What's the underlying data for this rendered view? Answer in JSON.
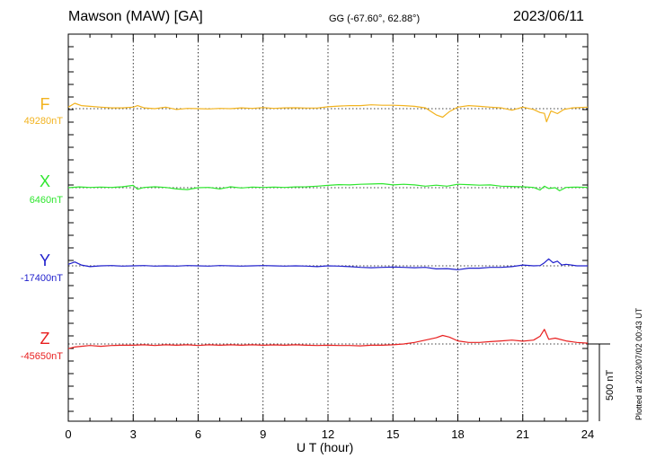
{
  "header": {
    "station": "Mawson (MAW)  [GA]",
    "coords": "GG (-67.60°,  62.88°)",
    "date": "2023/06/11"
  },
  "footer": {
    "plotted": "Plotted at 2023/07/02 00:43 UT",
    "scale_label": "500 nT"
  },
  "chart_data": {
    "type": "line",
    "title": "Mawson (MAW)  [GA]",
    "xlabel": "U T (hour)",
    "ylabel": "",
    "xlim": [
      0,
      24
    ],
    "xticks": [
      0,
      3,
      6,
      9,
      12,
      15,
      18,
      21,
      24
    ],
    "x_minor_step": 1,
    "scale_bar_nT": 500,
    "grid": "dotted vertical lines every 3 hours; dotted baseline per component",
    "series": [
      {
        "name": "F",
        "baseline_label": "49280nT",
        "baseline": 49280,
        "color": "#f2b31f",
        "points": [
          [
            0,
            49290
          ],
          [
            0.3,
            49315
          ],
          [
            0.6,
            49300
          ],
          [
            1,
            49295
          ],
          [
            1.5,
            49290
          ],
          [
            2,
            49285
          ],
          [
            2.5,
            49285
          ],
          [
            3,
            49290
          ],
          [
            3.2,
            49300
          ],
          [
            3.5,
            49285
          ],
          [
            4,
            49280
          ],
          [
            4.5,
            49290
          ],
          [
            5,
            49275
          ],
          [
            5.5,
            49282
          ],
          [
            6,
            49280
          ],
          [
            6.5,
            49278
          ],
          [
            7,
            49282
          ],
          [
            7.5,
            49280
          ],
          [
            8,
            49285
          ],
          [
            8.5,
            49282
          ],
          [
            9,
            49287
          ],
          [
            9.5,
            49282
          ],
          [
            10,
            49285
          ],
          [
            10.5,
            49286
          ],
          [
            11,
            49284
          ],
          [
            11.5,
            49284
          ],
          [
            12,
            49292
          ],
          [
            12.5,
            49297
          ],
          [
            13,
            49300
          ],
          [
            13.5,
            49300
          ],
          [
            14,
            49305
          ],
          [
            14.5,
            49302
          ],
          [
            15,
            49302
          ],
          [
            15.5,
            49300
          ],
          [
            16,
            49295
          ],
          [
            16.5,
            49285
          ],
          [
            17,
            49240
          ],
          [
            17.3,
            49225
          ],
          [
            17.6,
            49260
          ],
          [
            18,
            49290
          ],
          [
            18.5,
            49300
          ],
          [
            19,
            49295
          ],
          [
            19.5,
            49290
          ],
          [
            20,
            49285
          ],
          [
            20.5,
            49270
          ],
          [
            21,
            49290
          ],
          [
            21.5,
            49275
          ],
          [
            21.8,
            49255
          ],
          [
            22,
            49250
          ],
          [
            22.1,
            49195
          ],
          [
            22.3,
            49265
          ],
          [
            22.6,
            49248
          ],
          [
            22.9,
            49275
          ],
          [
            23.3,
            49285
          ],
          [
            24,
            49290
          ]
        ]
      },
      {
        "name": "X",
        "baseline_label": "6460nT",
        "baseline": 6460,
        "color": "#2ee62e",
        "points": [
          [
            0,
            6460
          ],
          [
            0.5,
            6465
          ],
          [
            1,
            6462
          ],
          [
            1.5,
            6464
          ],
          [
            2,
            6462
          ],
          [
            2.5,
            6466
          ],
          [
            3,
            6475
          ],
          [
            3.2,
            6450
          ],
          [
            3.5,
            6462
          ],
          [
            4,
            6466
          ],
          [
            4.5,
            6462
          ],
          [
            5,
            6452
          ],
          [
            5.5,
            6448
          ],
          [
            6,
            6460
          ],
          [
            6.5,
            6462
          ],
          [
            7,
            6452
          ],
          [
            7.5,
            6466
          ],
          [
            8,
            6458
          ],
          [
            8.5,
            6464
          ],
          [
            9,
            6462
          ],
          [
            9.5,
            6464
          ],
          [
            10,
            6462
          ],
          [
            10.5,
            6465
          ],
          [
            11,
            6466
          ],
          [
            11.5,
            6470
          ],
          [
            12,
            6475
          ],
          [
            12.5,
            6480
          ],
          [
            13,
            6478
          ],
          [
            13.5,
            6482
          ],
          [
            14,
            6484
          ],
          [
            14.5,
            6486
          ],
          [
            15,
            6478
          ],
          [
            15.5,
            6482
          ],
          [
            16,
            6478
          ],
          [
            16.5,
            6470
          ],
          [
            17,
            6476
          ],
          [
            17.5,
            6470
          ],
          [
            18,
            6482
          ],
          [
            18.5,
            6480
          ],
          [
            19,
            6476
          ],
          [
            19.5,
            6478
          ],
          [
            20,
            6470
          ],
          [
            20.5,
            6468
          ],
          [
            21,
            6466
          ],
          [
            21.5,
            6462
          ],
          [
            21.8,
            6445
          ],
          [
            22,
            6470
          ],
          [
            22.2,
            6455
          ],
          [
            22.5,
            6460
          ],
          [
            22.7,
            6440
          ],
          [
            23,
            6462
          ],
          [
            23.5,
            6464
          ],
          [
            24,
            6462
          ]
        ]
      },
      {
        "name": "Y",
        "baseline_label": "-17400nT",
        "baseline": -17400,
        "color": "#1f1fcc",
        "points": [
          [
            0,
            -17390
          ],
          [
            0.3,
            -17375
          ],
          [
            0.6,
            -17395
          ],
          [
            1,
            -17405
          ],
          [
            1.5,
            -17400
          ],
          [
            2,
            -17398
          ],
          [
            2.5,
            -17402
          ],
          [
            3,
            -17400
          ],
          [
            3.5,
            -17398
          ],
          [
            4,
            -17402
          ],
          [
            4.5,
            -17400
          ],
          [
            5,
            -17402
          ],
          [
            5.5,
            -17398
          ],
          [
            6,
            -17400
          ],
          [
            6.5,
            -17402
          ],
          [
            7,
            -17398
          ],
          [
            7.5,
            -17400
          ],
          [
            8,
            -17402
          ],
          [
            8.5,
            -17400
          ],
          [
            9,
            -17398
          ],
          [
            9.5,
            -17400
          ],
          [
            10,
            -17402
          ],
          [
            10.5,
            -17400
          ],
          [
            11,
            -17402
          ],
          [
            11.5,
            -17405
          ],
          [
            12,
            -17400
          ],
          [
            12.5,
            -17402
          ],
          [
            13,
            -17405
          ],
          [
            13.5,
            -17410
          ],
          [
            14,
            -17412
          ],
          [
            14.5,
            -17410
          ],
          [
            15,
            -17408
          ],
          [
            15.5,
            -17410
          ],
          [
            16,
            -17412
          ],
          [
            16.5,
            -17410
          ],
          [
            17,
            -17420
          ],
          [
            17.5,
            -17418
          ],
          [
            18,
            -17425
          ],
          [
            18.5,
            -17415
          ],
          [
            19,
            -17415
          ],
          [
            19.5,
            -17410
          ],
          [
            20,
            -17410
          ],
          [
            20.5,
            -17405
          ],
          [
            21,
            -17395
          ],
          [
            21.5,
            -17400
          ],
          [
            21.8,
            -17398
          ],
          [
            22,
            -17380
          ],
          [
            22.2,
            -17355
          ],
          [
            22.4,
            -17380
          ],
          [
            22.6,
            -17370
          ],
          [
            22.8,
            -17395
          ],
          [
            23,
            -17390
          ],
          [
            23.5,
            -17400
          ],
          [
            24,
            -17400
          ]
        ]
      },
      {
        "name": "Z",
        "baseline_label": "-45650nT",
        "baseline": -45650,
        "color": "#e81f1f",
        "points": [
          [
            0,
            -45680
          ],
          [
            0.3,
            -45670
          ],
          [
            0.6,
            -45665
          ],
          [
            1,
            -45660
          ],
          [
            1.5,
            -45665
          ],
          [
            2,
            -45660
          ],
          [
            2.5,
            -45658
          ],
          [
            3,
            -45658
          ],
          [
            3.5,
            -45655
          ],
          [
            4,
            -45660
          ],
          [
            4.5,
            -45655
          ],
          [
            5,
            -45658
          ],
          [
            5.5,
            -45655
          ],
          [
            6,
            -45660
          ],
          [
            6.5,
            -45655
          ],
          [
            7,
            -45658
          ],
          [
            7.5,
            -45655
          ],
          [
            8,
            -45658
          ],
          [
            8.5,
            -45655
          ],
          [
            9,
            -45658
          ],
          [
            9.5,
            -45656
          ],
          [
            10,
            -45658
          ],
          [
            10.5,
            -45655
          ],
          [
            11,
            -45658
          ],
          [
            11.5,
            -45660
          ],
          [
            12,
            -45658
          ],
          [
            12.5,
            -45660
          ],
          [
            13,
            -45660
          ],
          [
            13.5,
            -45662
          ],
          [
            14,
            -45658
          ],
          [
            14.5,
            -45658
          ],
          [
            15,
            -45655
          ],
          [
            15.5,
            -45650
          ],
          [
            16,
            -45640
          ],
          [
            16.5,
            -45625
          ],
          [
            17,
            -45610
          ],
          [
            17.3,
            -45595
          ],
          [
            17.6,
            -45605
          ],
          [
            18,
            -45630
          ],
          [
            18.5,
            -45640
          ],
          [
            19,
            -45640
          ],
          [
            19.5,
            -45635
          ],
          [
            20,
            -45630
          ],
          [
            20.5,
            -45625
          ],
          [
            21,
            -45632
          ],
          [
            21.5,
            -45625
          ],
          [
            21.8,
            -45600
          ],
          [
            22,
            -45555
          ],
          [
            22.2,
            -45620
          ],
          [
            22.5,
            -45612
          ],
          [
            23,
            -45630
          ],
          [
            23.5,
            -45640
          ],
          [
            24,
            -45645
          ]
        ]
      }
    ]
  }
}
